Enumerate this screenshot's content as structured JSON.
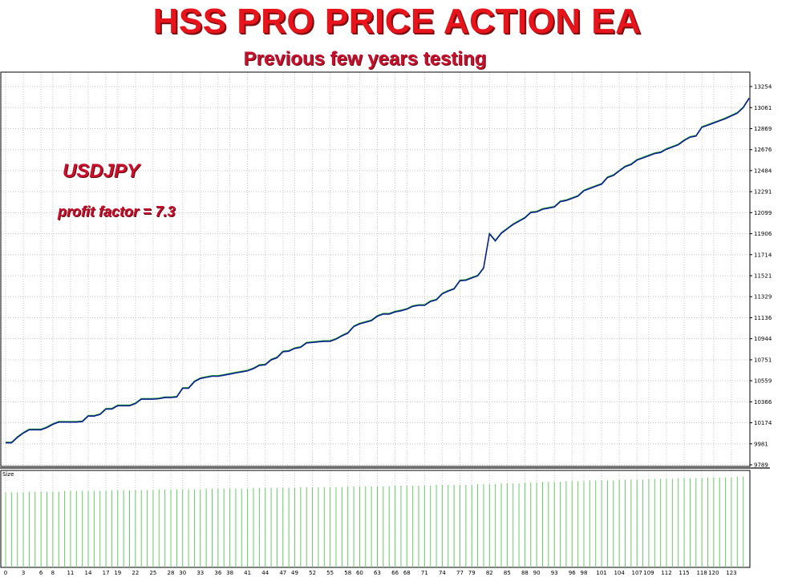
{
  "header": {
    "title": "HSS PRO PRICE ACTION EA",
    "subtitle": "Previous few years testing"
  },
  "annotations": {
    "symbol": "USDJPY",
    "profit_factor": "profit factor = 7.3"
  },
  "colors": {
    "title": "#e8141c",
    "balance_line": "#0b1f8f",
    "equity_line": "#2fb52f",
    "size_bars": "#66cc66",
    "grid": "#c8c8c8"
  },
  "chart_data": [
    {
      "type": "line",
      "panel": "balance",
      "ylim": [
        9789,
        13254
      ],
      "y_ticks": [
        "13254",
        "13061",
        "12869",
        "12676",
        "12484",
        "12291",
        "12099",
        "11906",
        "11714",
        "11521",
        "11329",
        "11136",
        "10944",
        "10751",
        "10559",
        "10366",
        "10174",
        "9981",
        "9789"
      ],
      "x_ticks": [
        "0",
        "3",
        "6",
        "8",
        "11",
        "14",
        "17",
        "19",
        "22",
        "25",
        "28",
        "30",
        "33",
        "36",
        "38",
        "41",
        "44",
        "47",
        "49",
        "52",
        "55",
        "58",
        "60",
        "63",
        "66",
        "68",
        "71",
        "74",
        "77",
        "79",
        "82",
        "85",
        "88",
        "90",
        "93",
        "96",
        "98",
        "101",
        "104",
        "107",
        "109",
        "112",
        "115",
        "118",
        "120",
        "123"
      ],
      "grid": true,
      "series": [
        {
          "x": [
            0,
            1,
            2,
            3,
            4,
            5,
            6,
            7,
            8,
            9,
            10,
            11,
            12,
            13,
            14,
            15,
            16,
            17,
            18,
            19,
            20,
            21,
            22,
            23,
            24,
            25,
            26,
            27,
            28,
            29,
            30,
            31,
            32,
            33,
            34,
            35,
            36,
            37,
            38,
            39,
            40,
            41,
            42,
            43,
            44,
            45,
            46,
            47,
            48,
            49,
            50,
            51,
            52,
            53,
            54,
            55,
            56,
            57,
            58,
            59,
            60,
            61,
            62,
            63,
            64,
            65,
            66,
            67,
            68,
            69,
            70,
            71,
            72,
            73,
            74,
            75,
            76,
            77,
            78,
            79,
            80,
            81,
            82,
            83,
            84,
            85,
            86,
            87,
            88,
            89,
            90,
            91,
            92,
            93,
            94,
            95,
            96,
            97,
            98,
            99,
            100,
            101,
            102,
            103,
            104,
            105,
            106,
            107,
            108,
            109,
            110,
            111,
            112,
            113,
            114,
            115,
            116,
            117,
            118,
            119,
            120,
            121,
            122,
            123,
            124,
            125,
            126
          ],
          "y": [
            9990,
            9990,
            10040,
            10080,
            10110,
            10110,
            10110,
            10130,
            10160,
            10180,
            10180,
            10180,
            10180,
            10185,
            10235,
            10235,
            10250,
            10300,
            10300,
            10330,
            10330,
            10330,
            10350,
            10390,
            10390,
            10390,
            10395,
            10405,
            10405,
            10410,
            10490,
            10490,
            10550,
            10580,
            10590,
            10600,
            10600,
            10610,
            10620,
            10630,
            10640,
            10650,
            10670,
            10700,
            10705,
            10750,
            10770,
            10825,
            10830,
            10855,
            10865,
            10905,
            10910,
            10915,
            10920,
            10920,
            10940,
            10970,
            10995,
            11055,
            11080,
            11095,
            11110,
            11150,
            11170,
            11170,
            11190,
            11200,
            11215,
            11240,
            11250,
            11250,
            11285,
            11300,
            11355,
            11380,
            11400,
            11475,
            11480,
            11500,
            11520,
            11590,
            11905,
            11840,
            11910,
            11950,
            11990,
            12020,
            12050,
            12100,
            12105,
            12130,
            12140,
            12150,
            12200,
            12210,
            12230,
            12250,
            12300,
            12320,
            12340,
            12360,
            12420,
            12440,
            12480,
            12520,
            12540,
            12580,
            12600,
            12620,
            12640,
            12650,
            12680,
            12700,
            12720,
            12760,
            12790,
            12800,
            12880,
            12900,
            12920,
            12940,
            12960,
            12985,
            13010,
            13060,
            13145
          ],
          "color": "#0b1f8f"
        }
      ]
    },
    {
      "type": "bar",
      "panel": "size",
      "title": "Size",
      "series": [
        {
          "values": [
            1.0,
            1.0,
            1.0,
            1.0,
            1.01,
            1.01,
            1.01,
            1.01,
            1.01,
            1.01,
            1.02,
            1.02,
            1.02,
            1.02,
            1.02,
            1.02,
            1.02,
            1.02,
            1.03,
            1.03,
            1.03,
            1.03,
            1.03,
            1.03,
            1.03,
            1.03,
            1.04,
            1.04,
            1.04,
            1.04,
            1.04,
            1.04,
            1.04,
            1.04,
            1.05,
            1.05,
            1.05,
            1.05,
            1.05,
            1.05,
            1.05,
            1.05,
            1.06,
            1.06,
            1.06,
            1.06,
            1.06,
            1.06,
            1.06,
            1.06,
            1.07,
            1.07,
            1.07,
            1.07,
            1.07,
            1.07,
            1.07,
            1.07,
            1.08,
            1.08,
            1.08,
            1.08,
            1.08,
            1.08,
            1.08,
            1.08,
            1.09,
            1.09,
            1.09,
            1.09,
            1.09,
            1.09,
            1.09,
            1.1,
            1.1,
            1.1,
            1.1,
            1.1,
            1.1,
            1.1,
            1.11,
            1.11,
            1.11,
            1.11,
            1.12,
            1.12,
            1.12,
            1.12,
            1.13,
            1.13,
            1.13,
            1.14,
            1.14,
            1.14,
            1.14,
            1.15,
            1.15,
            1.15,
            1.15,
            1.16,
            1.16,
            1.16,
            1.16,
            1.16,
            1.17,
            1.17,
            1.17,
            1.17,
            1.17,
            1.18,
            1.18,
            1.18,
            1.18,
            1.18,
            1.19,
            1.19,
            1.19,
            1.19,
            1.19,
            1.2,
            1.2,
            1.2,
            1.2,
            1.2,
            1.21,
            1.21
          ],
          "color": "#66cc66"
        }
      ]
    }
  ]
}
